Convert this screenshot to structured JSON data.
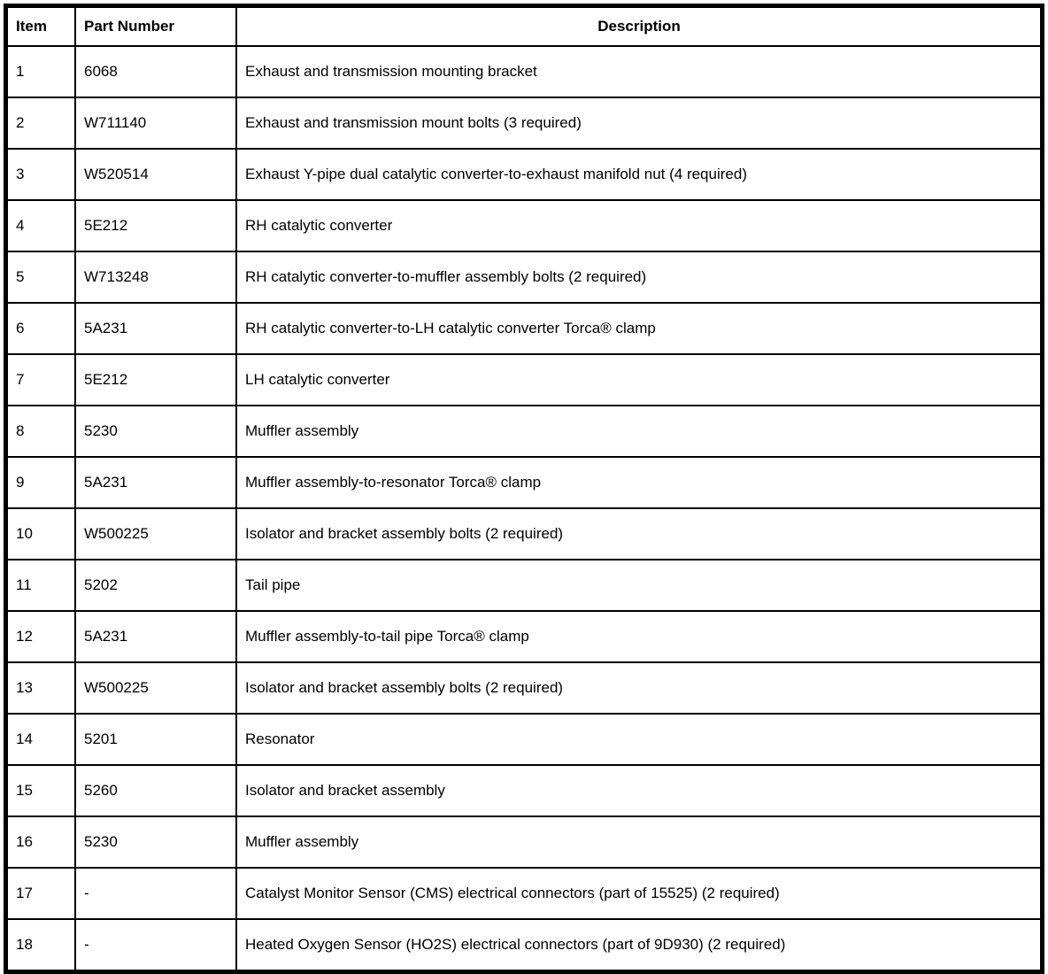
{
  "table": {
    "columns": [
      {
        "label": "Item"
      },
      {
        "label": "Part Number"
      },
      {
        "label": "Description"
      }
    ],
    "rows": [
      {
        "item": "1",
        "part_number": "6068",
        "description": "Exhaust and transmission mounting bracket"
      },
      {
        "item": "2",
        "part_number": "W711140",
        "description": "Exhaust and transmission mount bolts (3 required)"
      },
      {
        "item": "3",
        "part_number": "W520514",
        "description": "Exhaust Y-pipe dual catalytic converter-to-exhaust manifold nut (4 required)"
      },
      {
        "item": "4",
        "part_number": "5E212",
        "description": "RH catalytic converter"
      },
      {
        "item": "5",
        "part_number": "W713248",
        "description": "RH catalytic converter-to-muffler assembly bolts (2 required)"
      },
      {
        "item": "6",
        "part_number": "5A231",
        "description": "RH catalytic converter-to-LH catalytic converter Torca® clamp"
      },
      {
        "item": "7",
        "part_number": "5E212",
        "description": "LH catalytic converter"
      },
      {
        "item": "8",
        "part_number": "5230",
        "description": "Muffler assembly"
      },
      {
        "item": "9",
        "part_number": "5A231",
        "description": "Muffler assembly-to-resonator Torca® clamp"
      },
      {
        "item": "10",
        "part_number": "W500225",
        "description": "Isolator and bracket assembly bolts (2 required)"
      },
      {
        "item": "11",
        "part_number": "5202",
        "description": "Tail pipe"
      },
      {
        "item": "12",
        "part_number": "5A231",
        "description": "Muffler assembly-to-tail pipe Torca® clamp"
      },
      {
        "item": "13",
        "part_number": "W500225",
        "description": "Isolator and bracket assembly bolts (2 required)"
      },
      {
        "item": "14",
        "part_number": "5201",
        "description": "Resonator"
      },
      {
        "item": "15",
        "part_number": "5260",
        "description": "Isolator and bracket assembly"
      },
      {
        "item": "16",
        "part_number": "5230",
        "description": "Muffler assembly"
      },
      {
        "item": "17",
        "part_number": "-",
        "description": "Catalyst Monitor Sensor (CMS) electrical connectors (part of 15525) (2 required)"
      },
      {
        "item": "18",
        "part_number": "-",
        "description": "Heated Oxygen Sensor (HO2S) electrical connectors (part of 9D930) (2 required)"
      }
    ],
    "border_color": "#000000",
    "text_color": "#000000",
    "background_color": "#ffffff"
  }
}
